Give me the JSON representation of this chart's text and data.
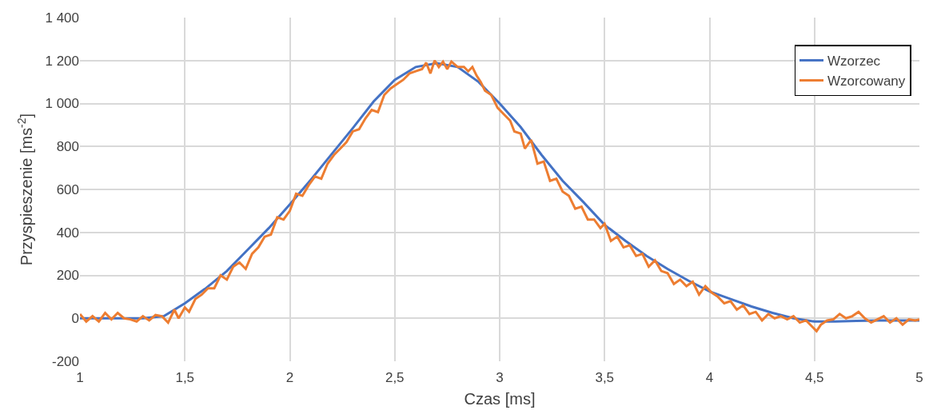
{
  "chart_data": {
    "type": "line",
    "xlabel": "Czas [ms]",
    "ylabel": "Przyspieszenie [ms$^{-2}$]",
    "grid": true,
    "legend": "top right",
    "marker": "none",
    "line_style": "solid",
    "xlim": [
      1,
      5
    ],
    "xticks": [
      1,
      {
        "value": 1.5,
        "label": "1,5"
      },
      2,
      {
        "value": 2.5,
        "label": "2,5"
      },
      3,
      {
        "value": 3.5,
        "label": "3,5"
      },
      4,
      {
        "value": 4.5,
        "label": "4,5"
      },
      5
    ],
    "ylim": [
      -200,
      1400
    ],
    "yticks": [
      -200,
      0,
      200,
      400,
      600,
      800,
      {
        "value": 1000,
        "label": "1 000"
      },
      {
        "value": 1200,
        "label": "1 200"
      },
      {
        "value": 1400,
        "label": "1 400"
      }
    ],
    "series": [
      {
        "name": "Wzorzec",
        "color": "#4472c4",
        "x": [
          1,
          1.1,
          1.2,
          1.3,
          1.4,
          1.5,
          1.6,
          1.7,
          1.8,
          1.9,
          2,
          2.1,
          2.2,
          2.3,
          2.4,
          2.5,
          2.6,
          2.7,
          2.8,
          2.9,
          3,
          3.1,
          3.2,
          3.3,
          3.4,
          3.5,
          3.6,
          3.7,
          3.8,
          3.9,
          4,
          4.1,
          4.2,
          4.3,
          4.4,
          4.5,
          4.6,
          4.7,
          4.8,
          4.9,
          5
        ],
        "values": [
          0,
          0,
          0,
          0,
          10,
          70,
          140,
          220,
          320,
          420,
          530,
          645,
          765,
          885,
          1010,
          1110,
          1170,
          1188,
          1170,
          1100,
          1000,
          890,
          760,
          640,
          540,
          435,
          360,
          290,
          230,
          175,
          125,
          90,
          55,
          25,
          0,
          -15,
          -15,
          -12,
          -10,
          -10,
          -10
        ]
      },
      {
        "name": "Wzorcowany",
        "color": "#ed7d31",
        "x": [
          1,
          1.03,
          1.06,
          1.09,
          1.12,
          1.15,
          1.18,
          1.21,
          1.24,
          1.27,
          1.3,
          1.33,
          1.36,
          1.39,
          1.42,
          1.45,
          1.47,
          1.5,
          1.52,
          1.55,
          1.58,
          1.61,
          1.64,
          1.67,
          1.7,
          1.73,
          1.76,
          1.79,
          1.82,
          1.85,
          1.88,
          1.91,
          1.94,
          1.97,
          2,
          2.03,
          2.06,
          2.09,
          2.12,
          2.15,
          2.18,
          2.21,
          2.24,
          2.27,
          2.3,
          2.33,
          2.36,
          2.39,
          2.42,
          2.45,
          2.48,
          2.51,
          2.54,
          2.57,
          2.6,
          2.63,
          2.65,
          2.67,
          2.69,
          2.71,
          2.73,
          2.75,
          2.77,
          2.8,
          2.83,
          2.85,
          2.87,
          2.89,
          2.91,
          2.93,
          2.96,
          2.99,
          3.02,
          3.05,
          3.07,
          3.1,
          3.12,
          3.15,
          3.18,
          3.21,
          3.24,
          3.27,
          3.3,
          3.33,
          3.36,
          3.39,
          3.42,
          3.45,
          3.48,
          3.5,
          3.53,
          3.56,
          3.59,
          3.62,
          3.65,
          3.68,
          3.71,
          3.74,
          3.77,
          3.8,
          3.83,
          3.86,
          3.89,
          3.92,
          3.95,
          3.98,
          4.01,
          4.04,
          4.07,
          4.1,
          4.13,
          4.16,
          4.19,
          4.22,
          4.25,
          4.28,
          4.31,
          4.34,
          4.37,
          4.4,
          4.43,
          4.46,
          4.49,
          4.51,
          4.53,
          4.56,
          4.59,
          4.62,
          4.65,
          4.68,
          4.71,
          4.74,
          4.77,
          4.8,
          4.83,
          4.86,
          4.89,
          4.92,
          4.95,
          4.98,
          5
        ],
        "values": [
          20,
          -15,
          10,
          -15,
          25,
          -5,
          25,
          0,
          -5,
          -15,
          10,
          -10,
          15,
          10,
          -20,
          40,
          0,
          50,
          30,
          90,
          110,
          140,
          140,
          200,
          180,
          240,
          260,
          230,
          300,
          330,
          380,
          390,
          470,
          460,
          500,
          580,
          570,
          620,
          660,
          650,
          720,
          760,
          790,
          820,
          870,
          880,
          930,
          970,
          960,
          1040,
          1070,
          1090,
          1110,
          1140,
          1150,
          1160,
          1190,
          1140,
          1200,
          1170,
          1195,
          1160,
          1195,
          1170,
          1170,
          1150,
          1170,
          1130,
          1100,
          1060,
          1040,
          980,
          950,
          920,
          870,
          860,
          790,
          830,
          720,
          730,
          640,
          650,
          590,
          570,
          510,
          520,
          460,
          460,
          420,
          440,
          360,
          380,
          330,
          340,
          290,
          300,
          240,
          270,
          220,
          210,
          160,
          180,
          150,
          170,
          110,
          150,
          120,
          100,
          70,
          80,
          40,
          60,
          20,
          30,
          -10,
          20,
          0,
          10,
          -5,
          10,
          -20,
          -10,
          -40,
          -60,
          -30,
          -10,
          -5,
          20,
          0,
          10,
          30,
          0,
          -20,
          -5,
          10,
          -20,
          0,
          -30,
          -5,
          -10,
          -5
        ]
      }
    ]
  }
}
